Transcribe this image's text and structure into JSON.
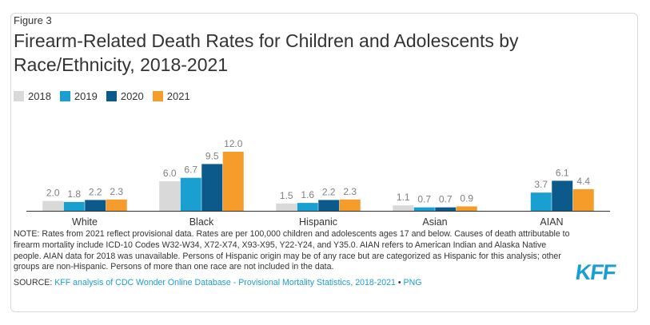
{
  "figure_label": "Figure 3",
  "title": "Firearm-Related Death Rates for Children and Adolescents by Race/Ethnicity, 2018-2021",
  "note": "NOTE: Rates from 2021 reflect provisional data. Rates are per 100,000 children and adolescents ages 17 and below. Causes of death attributable to firearm mortality include ICD-10 Codes W32-W34, X72-X74, X93-X95, Y22-Y24, and Y35.0. AIAN refers to American Indian and Alaska Native people. AIAN data for 2018 was unavailable. Persons of Hispanic origin may be of any race but are categorized as Hispanic for this analysis; other groups are non-Hispanic. Persons of more than one race are not included in the data.",
  "source_prefix": "SOURCE: ",
  "source_link": "KFF analysis of CDC Wonder Online Database - Provisional Mortality Statistics, 2018-2021",
  "source_sep": " • ",
  "source_png": "PNG",
  "logo_text": "KFF",
  "colors": {
    "2018": "#d9d9d9",
    "2019": "#1a9fd1",
    "2020": "#0c5a8c",
    "2021": "#f59c2b",
    "label": "#7f7f7f",
    "axis": "#333333",
    "link": "#1a9fd1"
  },
  "chart_data": {
    "type": "bar",
    "categories": [
      "White",
      "Black",
      "Hispanic",
      "Asian",
      "AIAN"
    ],
    "series": [
      {
        "name": "2018",
        "values": [
          2.0,
          6.0,
          1.5,
          1.1,
          null
        ]
      },
      {
        "name": "2019",
        "values": [
          1.8,
          6.7,
          1.6,
          0.7,
          3.7
        ]
      },
      {
        "name": "2020",
        "values": [
          2.2,
          9.5,
          2.2,
          0.7,
          6.1
        ]
      },
      {
        "name": "2021",
        "values": [
          2.3,
          12.0,
          2.3,
          0.9,
          4.4
        ]
      }
    ],
    "ylim": [
      0,
      12
    ],
    "grid": false,
    "legend": "top-left",
    "data_labels": true
  }
}
